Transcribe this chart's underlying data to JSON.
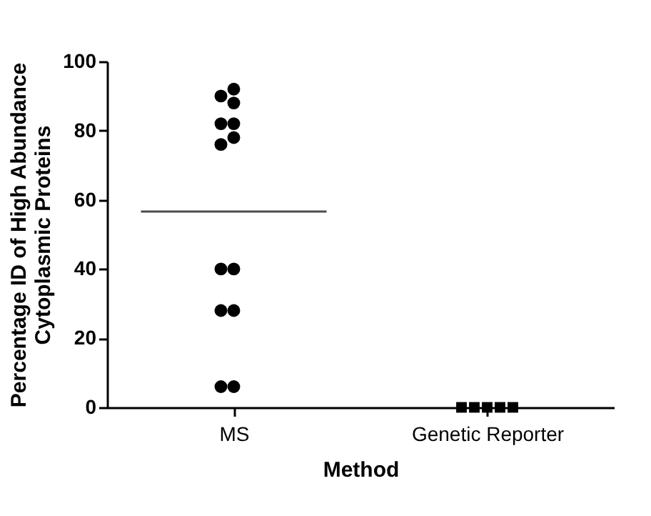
{
  "chart_data": {
    "type": "scatter",
    "xlabel": "Method",
    "ylabel": "Percentage ID of High Abundance\nCytoplasmic Proteins",
    "categories": [
      "MS",
      "Genetic Reporter"
    ],
    "series": [
      {
        "color": "#000000",
        "marker": "circle",
        "x": [
          "MS",
          "MS",
          "MS",
          "MS",
          "MS",
          "MS",
          "MS",
          "MS",
          "MS",
          "MS",
          "MS",
          "MS",
          "MS"
        ],
        "values": [
          92,
          88,
          90,
          82,
          82,
          78,
          76,
          40,
          40,
          28,
          28,
          6,
          6
        ]
      },
      {
        "color": "#000000",
        "marker": "square",
        "x": [
          "Genetic Reporter",
          "Genetic Reporter",
          "Genetic Reporter",
          "Genetic Reporter",
          "Genetic Reporter"
        ],
        "values": [
          0,
          0,
          0,
          0,
          0
        ]
      }
    ],
    "ref_lines": [
      {
        "axis": "y",
        "value": 56.6
      }
    ],
    "ylim": [
      0,
      100
    ],
    "yticks": [
      0,
      20,
      40,
      60,
      80,
      100
    ],
    "grid": false
  }
}
